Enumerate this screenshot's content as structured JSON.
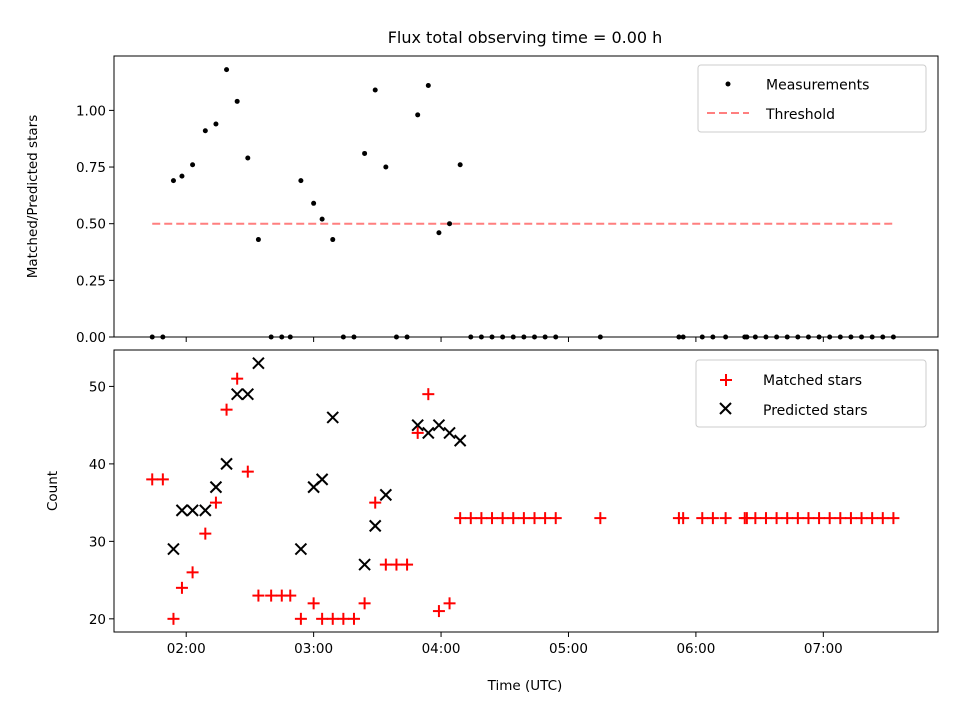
{
  "chart_data": [
    {
      "type": "scatter",
      "title": "Flux total observing time = 0.00 h",
      "xlabel": "",
      "ylabel": "Matched/Predicted stars",
      "xlim": [
        "01:26",
        "07:54"
      ],
      "ylim": [
        0,
        1.24
      ],
      "x_tick_marks": [
        "02:00",
        "03:00",
        "04:00",
        "05:00",
        "06:00",
        "07:00"
      ],
      "y_ticks": [
        "0.00",
        "0.25",
        "0.50",
        "0.75",
        "1.00"
      ],
      "legend_position": "top-right",
      "legend": [
        "Measurements",
        "Threshold"
      ],
      "series": [
        {
          "name": "Measurements",
          "marker": "dot",
          "color": "#000000",
          "points": [
            [
              "01:44",
              0.0
            ],
            [
              "01:49",
              0.0
            ],
            [
              "01:54",
              0.69
            ],
            [
              "01:58",
              0.71
            ],
            [
              "02:03",
              0.76
            ],
            [
              "02:09",
              0.91
            ],
            [
              "02:14",
              0.94
            ],
            [
              "02:19",
              1.18
            ],
            [
              "02:24",
              1.04
            ],
            [
              "02:29",
              0.79
            ],
            [
              "02:34",
              0.43
            ],
            [
              "02:40",
              0.0
            ],
            [
              "02:45",
              0.0
            ],
            [
              "02:49",
              0.0
            ],
            [
              "02:54",
              0.69
            ],
            [
              "03:00",
              0.59
            ],
            [
              "03:04",
              0.52
            ],
            [
              "03:09",
              0.43
            ],
            [
              "03:14",
              0.0
            ],
            [
              "03:19",
              0.0
            ],
            [
              "03:24",
              0.81
            ],
            [
              "03:29",
              1.09
            ],
            [
              "03:34",
              0.75
            ],
            [
              "03:39",
              0.0
            ],
            [
              "03:44",
              0.0
            ],
            [
              "03:49",
              0.98
            ],
            [
              "03:54",
              1.11
            ],
            [
              "03:59",
              0.46
            ],
            [
              "04:04",
              0.5
            ],
            [
              "04:09",
              0.76
            ],
            [
              "04:14",
              0.0
            ],
            [
              "04:19",
              0.0
            ],
            [
              "04:24",
              0.0
            ],
            [
              "04:29",
              0.0
            ],
            [
              "04:34",
              0.0
            ],
            [
              "04:39",
              0.0
            ],
            [
              "04:44",
              0.0
            ],
            [
              "04:49",
              0.0
            ],
            [
              "04:54",
              0.0
            ],
            [
              "05:15",
              0.0
            ],
            [
              "05:52",
              0.0
            ],
            [
              "05:54",
              0.0
            ],
            [
              "06:03",
              0.0
            ],
            [
              "06:08",
              0.0
            ],
            [
              "06:14",
              0.0
            ],
            [
              "06:23",
              0.0
            ],
            [
              "06:24",
              0.0
            ],
            [
              "06:28",
              0.0
            ],
            [
              "06:33",
              0.0
            ],
            [
              "06:38",
              0.0
            ],
            [
              "06:43",
              0.0
            ],
            [
              "06:48",
              0.0
            ],
            [
              "06:53",
              0.0
            ],
            [
              "06:58",
              0.0
            ],
            [
              "07:03",
              0.0
            ],
            [
              "07:08",
              0.0
            ],
            [
              "07:13",
              0.0
            ],
            [
              "07:18",
              0.0
            ],
            [
              "07:23",
              0.0
            ],
            [
              "07:28",
              0.0
            ],
            [
              "07:33",
              0.0
            ]
          ]
        },
        {
          "name": "Threshold",
          "marker": "dashed-line",
          "color": "#ff7f7f",
          "points": [
            [
              "01:44",
              0.5
            ],
            [
              "07:33",
              0.5
            ]
          ]
        }
      ]
    },
    {
      "type": "scatter",
      "title": "",
      "xlabel": "Time (UTC)",
      "ylabel": "Count",
      "xlim": [
        "01:26",
        "07:54"
      ],
      "ylim": [
        18.3,
        54.7
      ],
      "x_ticks": [
        "02:00",
        "03:00",
        "04:00",
        "05:00",
        "06:00",
        "07:00"
      ],
      "y_ticks": [
        "20",
        "30",
        "40",
        "50"
      ],
      "legend_position": "top-right",
      "legend": [
        "Matched stars",
        "Predicted stars"
      ],
      "series": [
        {
          "name": "Matched stars",
          "marker": "plus",
          "color": "#ff0000",
          "points": [
            [
              "01:44",
              38
            ],
            [
              "01:49",
              38
            ],
            [
              "01:54",
              20
            ],
            [
              "01:58",
              24
            ],
            [
              "02:03",
              26
            ],
            [
              "02:09",
              31
            ],
            [
              "02:14",
              35
            ],
            [
              "02:19",
              47
            ],
            [
              "02:24",
              51
            ],
            [
              "02:29",
              39
            ],
            [
              "02:34",
              23
            ],
            [
              "02:40",
              23
            ],
            [
              "02:45",
              23
            ],
            [
              "02:49",
              23
            ],
            [
              "02:54",
              20
            ],
            [
              "03:00",
              22
            ],
            [
              "03:04",
              20
            ],
            [
              "03:09",
              20
            ],
            [
              "03:14",
              20
            ],
            [
              "03:19",
              20
            ],
            [
              "03:24",
              22
            ],
            [
              "03:29",
              35
            ],
            [
              "03:34",
              27
            ],
            [
              "03:39",
              27
            ],
            [
              "03:44",
              27
            ],
            [
              "03:49",
              44
            ],
            [
              "03:54",
              49
            ],
            [
              "03:59",
              21
            ],
            [
              "04:04",
              22
            ],
            [
              "04:09",
              33
            ],
            [
              "04:14",
              33
            ],
            [
              "04:19",
              33
            ],
            [
              "04:24",
              33
            ],
            [
              "04:29",
              33
            ],
            [
              "04:34",
              33
            ],
            [
              "04:39",
              33
            ],
            [
              "04:44",
              33
            ],
            [
              "04:49",
              33
            ],
            [
              "04:54",
              33
            ],
            [
              "05:15",
              33
            ],
            [
              "05:52",
              33
            ],
            [
              "05:54",
              33
            ],
            [
              "06:03",
              33
            ],
            [
              "06:08",
              33
            ],
            [
              "06:14",
              33
            ],
            [
              "06:23",
              33
            ],
            [
              "06:24",
              33
            ],
            [
              "06:28",
              33
            ],
            [
              "06:33",
              33
            ],
            [
              "06:38",
              33
            ],
            [
              "06:43",
              33
            ],
            [
              "06:48",
              33
            ],
            [
              "06:53",
              33
            ],
            [
              "06:58",
              33
            ],
            [
              "07:03",
              33
            ],
            [
              "07:08",
              33
            ],
            [
              "07:13",
              33
            ],
            [
              "07:18",
              33
            ],
            [
              "07:23",
              33
            ],
            [
              "07:28",
              33
            ],
            [
              "07:33",
              33
            ]
          ]
        },
        {
          "name": "Predicted stars",
          "marker": "x",
          "color": "#000000",
          "points": [
            [
              "01:54",
              29
            ],
            [
              "01:58",
              34
            ],
            [
              "02:03",
              34
            ],
            [
              "02:09",
              34
            ],
            [
              "02:14",
              37
            ],
            [
              "02:19",
              40
            ],
            [
              "02:24",
              49
            ],
            [
              "02:29",
              49
            ],
            [
              "02:34",
              53
            ],
            [
              "02:54",
              29
            ],
            [
              "03:00",
              37
            ],
            [
              "03:04",
              38
            ],
            [
              "03:09",
              46
            ],
            [
              "03:24",
              27
            ],
            [
              "03:29",
              32
            ],
            [
              "03:34",
              36
            ],
            [
              "03:49",
              45
            ],
            [
              "03:54",
              44
            ],
            [
              "03:59",
              45
            ],
            [
              "04:04",
              44
            ],
            [
              "04:09",
              43
            ]
          ]
        }
      ]
    }
  ]
}
